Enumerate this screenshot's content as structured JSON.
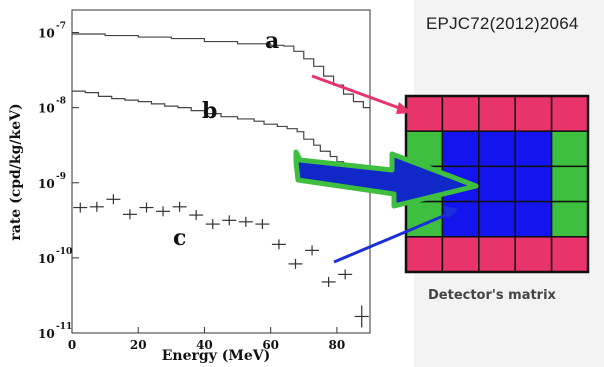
{
  "reference": "EPJC72(2012)2064",
  "matrix": {
    "label": "Detector's matrix",
    "rows": 5,
    "cols": 5,
    "cells": [
      [
        "pink",
        "pink",
        "pink",
        "pink",
        "pink"
      ],
      [
        "green",
        "blue",
        "blue",
        "blue",
        "green"
      ],
      [
        "green",
        "blue",
        "blue",
        "blue",
        "green"
      ],
      [
        "green",
        "blue",
        "blue",
        "blue",
        "green"
      ],
      [
        "pink",
        "pink",
        "pink",
        "pink",
        "pink"
      ]
    ],
    "colors": {
      "pink": "#e8336b",
      "green": "#3fbf3f",
      "blue": "#1414ee",
      "grid": "#111111"
    }
  },
  "arrows": {
    "a_color": "#e8336b",
    "c_color": "#1a2fd8",
    "big_fill": "#1028c8",
    "big_outline": "#3fbf3f"
  },
  "chart_data": {
    "type": "line",
    "xlabel": "Energy (MeV)",
    "ylabel": "rate (cpd/kg/keV)",
    "xlim": [
      0,
      90
    ],
    "ylim_log10": [
      -11,
      -6.7
    ],
    "x_ticks": [
      {
        "value": 0,
        "label": "0"
      },
      {
        "value": 20,
        "label": "20"
      },
      {
        "value": 40,
        "label": "40"
      },
      {
        "value": 60,
        "label": "60"
      },
      {
        "value": 80,
        "label": "80"
      }
    ],
    "y_ticks": [
      {
        "exp": -7,
        "base": "10",
        "sup": "-7"
      },
      {
        "exp": -8,
        "base": "10",
        "sup": "-8"
      },
      {
        "exp": -9,
        "base": "10",
        "sup": "-9"
      },
      {
        "exp": -10,
        "base": "10",
        "sup": "-10"
      },
      {
        "exp": -11,
        "base": "10",
        "sup": "-11"
      }
    ],
    "series": [
      {
        "name": "a",
        "style": "step",
        "points": [
          [
            0,
            -7.02
          ],
          [
            5,
            -7.02
          ],
          [
            10,
            -7.04
          ],
          [
            20,
            -7.06
          ],
          [
            30,
            -7.08
          ],
          [
            40,
            -7.12
          ],
          [
            50,
            -7.15
          ],
          [
            55,
            -7.15
          ],
          [
            60,
            -7.17
          ],
          [
            64,
            -7.18
          ],
          [
            67,
            -7.25
          ],
          [
            70,
            -7.35
          ],
          [
            73,
            -7.45
          ],
          [
            76,
            -7.58
          ],
          [
            79,
            -7.7
          ],
          [
            82,
            -7.82
          ],
          [
            85,
            -7.92
          ],
          [
            88,
            -8.0
          ],
          [
            90,
            -8.05
          ]
        ]
      },
      {
        "name": "b",
        "style": "step",
        "points": [
          [
            0,
            -7.78
          ],
          [
            4,
            -7.8
          ],
          [
            8,
            -7.85
          ],
          [
            12,
            -7.88
          ],
          [
            16,
            -7.9
          ],
          [
            20,
            -7.92
          ],
          [
            24,
            -7.95
          ],
          [
            28,
            -7.98
          ],
          [
            32,
            -8.0
          ],
          [
            36,
            -8.04
          ],
          [
            40,
            -8.08
          ],
          [
            45,
            -8.12
          ],
          [
            50,
            -8.15
          ],
          [
            55,
            -8.18
          ],
          [
            58,
            -8.22
          ],
          [
            62,
            -8.25
          ],
          [
            65,
            -8.28
          ],
          [
            68,
            -8.32
          ],
          [
            70,
            -8.42
          ],
          [
            73,
            -8.5
          ],
          [
            75,
            -8.58
          ],
          [
            78,
            -8.65
          ],
          [
            80,
            -8.72
          ],
          [
            82,
            -8.75
          ],
          [
            84,
            -8.85
          ],
          [
            86,
            -8.92
          ],
          [
            88,
            -9.0
          ],
          [
            90,
            -9.05
          ]
        ]
      },
      {
        "name": "c",
        "style": "crosses",
        "points": [
          [
            2.5,
            -9.33
          ],
          [
            7.5,
            -9.32
          ],
          [
            12.5,
            -9.22
          ],
          [
            17.5,
            -9.42
          ],
          [
            22.5,
            -9.33
          ],
          [
            27.5,
            -9.38
          ],
          [
            32.5,
            -9.32
          ],
          [
            37.5,
            -9.43
          ],
          [
            42.5,
            -9.55
          ],
          [
            47.5,
            -9.5
          ],
          [
            52.5,
            -9.52
          ],
          [
            57.5,
            -9.55
          ],
          [
            62.5,
            -9.82
          ],
          [
            67.5,
            -10.08
          ],
          [
            72.5,
            -9.9
          ],
          [
            77.5,
            -10.32
          ],
          [
            82.5,
            -10.22
          ],
          [
            87.5,
            -10.78
          ]
        ]
      }
    ],
    "annotations": [
      {
        "text": "a"
      },
      {
        "text": "b"
      },
      {
        "text": "c"
      }
    ]
  }
}
